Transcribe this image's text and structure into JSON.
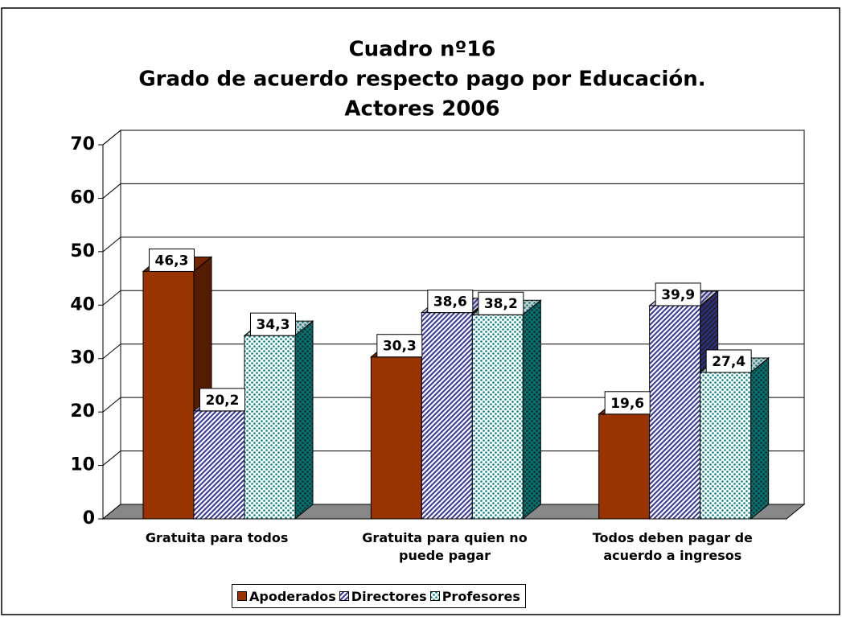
{
  "chart_data": {
    "type": "bar3d",
    "title": [
      "Cuadro nº16",
      "Grado de acuerdo respecto pago por Educación.",
      "Actores 2006"
    ],
    "categories": [
      "Gratuita para todos",
      "Gratuita para quien no puede pagar",
      "Todos deben pagar de acuerdo a ingresos"
    ],
    "series": [
      {
        "name": "Apoderados",
        "color": "#993300",
        "fill": "solid",
        "values": [
          46.3,
          30.3,
          19.6
        ],
        "value_labels": [
          "46,3",
          "30,3",
          "19,6"
        ]
      },
      {
        "name": "Directores",
        "color": "#333399",
        "fill": "hatch",
        "values": [
          20.2,
          38.6,
          39.9
        ],
        "value_labels": [
          "20,2",
          "38,6",
          "39,9"
        ]
      },
      {
        "name": "Profesores",
        "color": "#008080",
        "fill": "dots",
        "values": [
          34.3,
          38.2,
          27.4
        ],
        "value_labels": [
          "34,3",
          "38,2",
          "27,4"
        ]
      }
    ],
    "ylim": [
      0,
      70
    ],
    "yticks": [
      0,
      10,
      20,
      30,
      40,
      50,
      60,
      70
    ],
    "grid": true,
    "legend": "bottom"
  }
}
